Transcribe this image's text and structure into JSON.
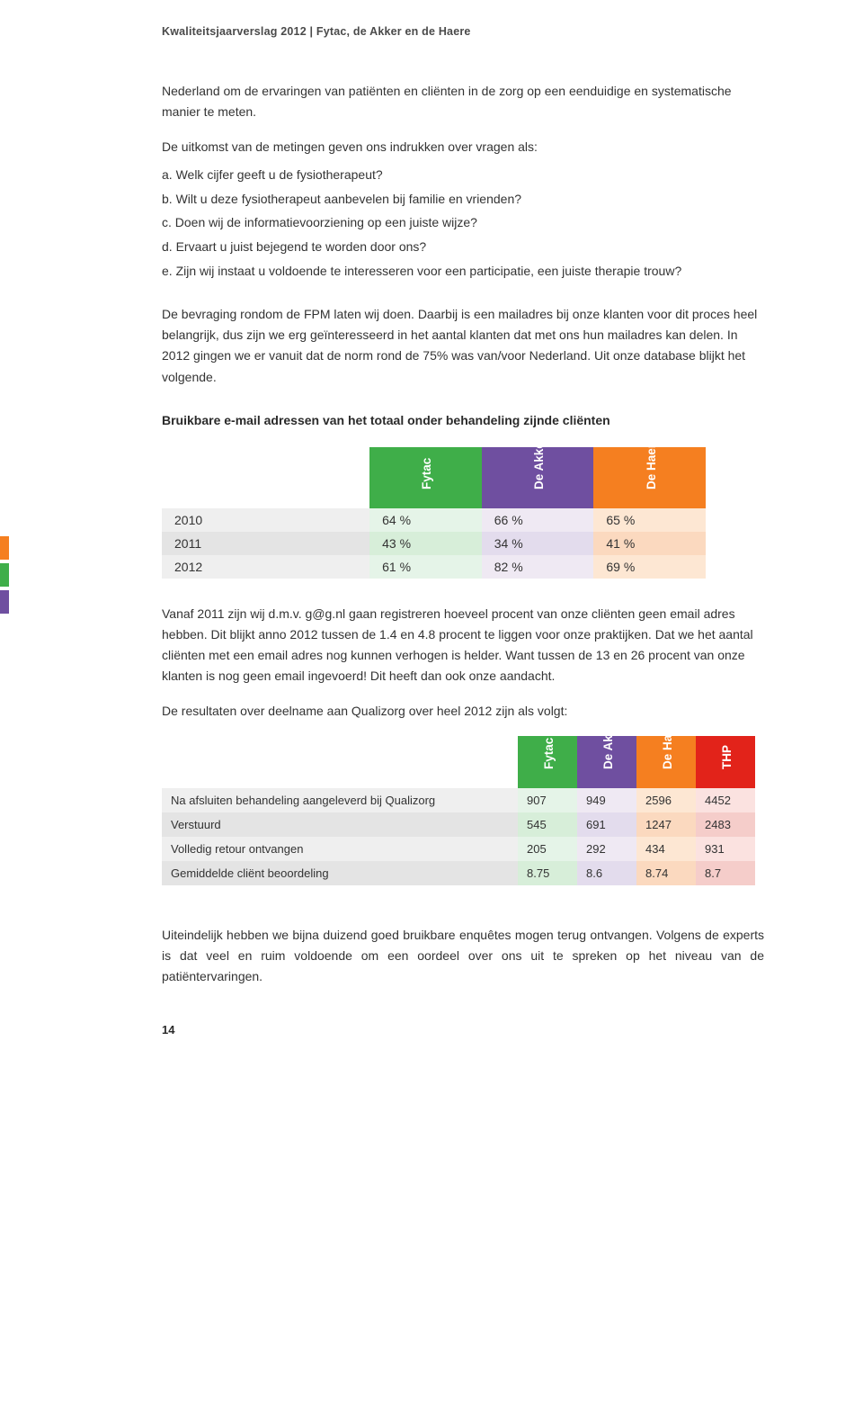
{
  "colors": {
    "green": "#3fae49",
    "purple": "#6f4fa0",
    "orange": "#f57f20",
    "red": "#e2231a",
    "grey_row_a": "#efefef",
    "grey_row_b": "#e4e4e4",
    "purple_light": "#efe9f3",
    "orange_light": "#fde7d3",
    "green_light": "#e5f4e8",
    "red_light": "#fbe2e0"
  },
  "header": "Kwaliteitsjaarverslag 2012 | Fytac, de Akker en de Haere",
  "p1": "Nederland om de ervaringen van patiënten en cliënten in de zorg op een eenduidige en systematische manier te meten.",
  "p2": "De uitkomst van de metingen geven ons indrukken over vragen als:",
  "list": {
    "a": "a.  Welk cijfer geeft u de fysiotherapeut?",
    "b": "b.  Wilt u deze fysiotherapeut aanbevelen bij familie en vrienden?",
    "c": "c.  Doen wij de informatievoorziening op een juiste wijze?",
    "d": "d.  Ervaart u juist bejegend te worden door ons?",
    "e": "e.  Zijn wij instaat u voldoende te interesseren voor een participatie, een juiste therapie trouw?"
  },
  "p3": "De bevraging rondom de FPM laten wij doen. Daarbij is een mailadres bij onze klanten voor dit proces heel belangrijk, dus zijn we erg geïnteresseerd in het aantal klanten dat met ons hun mailadres kan delen. In 2012 gingen we er vanuit dat de norm rond de 75% was van/voor Nederland. Uit onze database blijkt het volgende.",
  "sub1": "Bruikbare e-mail adressen van het totaal onder behandeling zijnde cliënten",
  "t1": {
    "headers": {
      "fytac": "Fytac",
      "akker": "De Akker",
      "haere": "De Haere"
    },
    "rows": [
      {
        "year": "2010",
        "fytac": "64 %",
        "akker": "66 %",
        "haere": "65 %"
      },
      {
        "year": "2011",
        "fytac": "43 %",
        "akker": "34 %",
        "haere": "41 %"
      },
      {
        "year": "2012",
        "fytac": "61 %",
        "akker": "82 %",
        "haere": "69 %"
      }
    ]
  },
  "p4": "Vanaf 2011 zijn wij d.m.v. g@g.nl gaan registreren hoeveel procent van onze cliënten geen email adres hebben. Dit blijkt anno 2012 tussen de 1.4 en 4.8 procent te liggen voor onze praktijken. Dat we het aantal cliënten met een email adres nog kunnen verhogen is helder. Want tussen de 13 en 26 procent van onze klanten is nog geen email ingevoerd! Dit heeft dan ook onze aandacht.",
  "p5": "De resultaten over deelname aan Qualizorg over heel 2012 zijn als volgt:",
  "t2": {
    "headers": {
      "fytac": "Fytac",
      "akker": "De Akker",
      "haere": "De Haere",
      "thp": "THP"
    },
    "rows": [
      {
        "label": "Na afsluiten behandeling aangeleverd bij Qualizorg",
        "fytac": "907",
        "akker": "949",
        "haere": "2596",
        "thp": "4452"
      },
      {
        "label": "Verstuurd",
        "fytac": "545",
        "akker": "691",
        "haere": "1247",
        "thp": "2483"
      },
      {
        "label": "Volledig retour ontvangen",
        "fytac": "205",
        "akker": "292",
        "haere": "434",
        "thp": "931"
      },
      {
        "label": "Gemiddelde cliënt beoordeling",
        "fytac": "8.75",
        "akker": "8.6",
        "haere": "8.74",
        "thp": "8.7"
      }
    ]
  },
  "p6": "Uiteindelijk hebben we bijna duizend goed bruikbare enquêtes mogen terug ontvangen. Volgens de experts is dat veel en ruim voldoende om een oordeel over ons uit te spreken op het niveau van de patiëntervaringen.",
  "page_num": "14"
}
